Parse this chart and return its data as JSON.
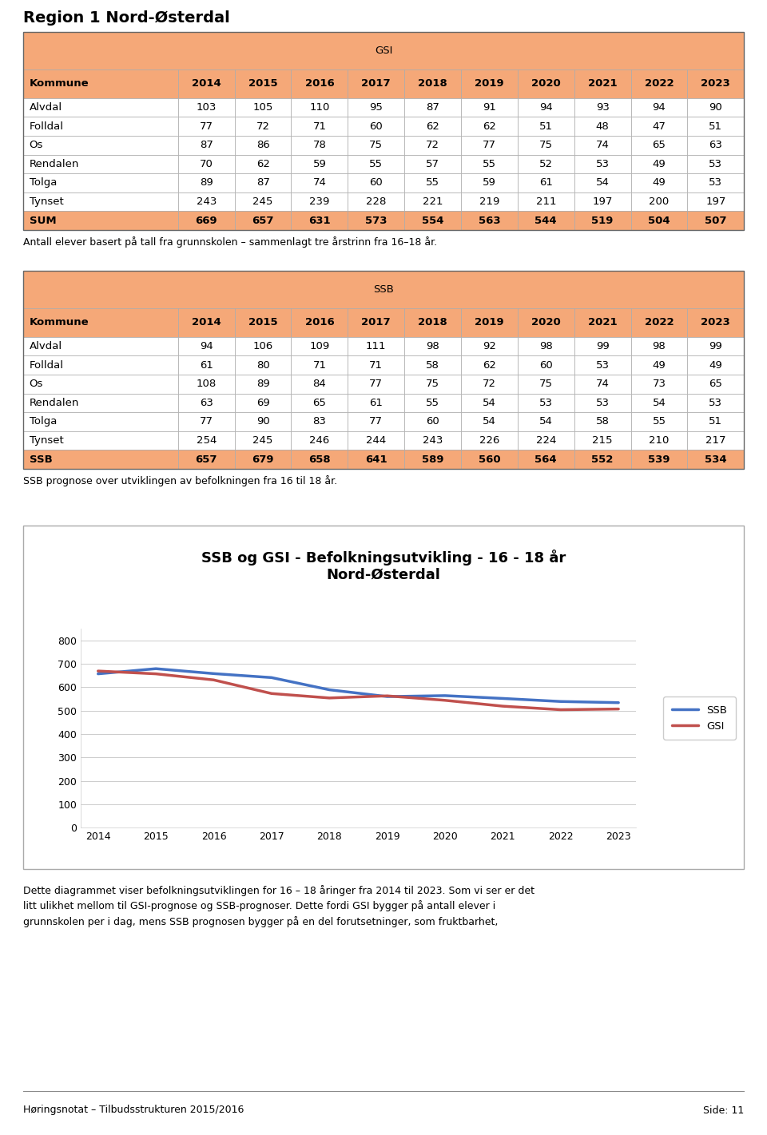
{
  "title": "Region 1 Nord-Østerdal",
  "gsi_header": "GSI",
  "ssb_header": "SSB",
  "years": [
    2014,
    2015,
    2016,
    2017,
    2018,
    2019,
    2020,
    2021,
    2022,
    2023
  ],
  "communes": [
    "Alvdal",
    "Folldal",
    "Os",
    "Rendalen",
    "Tolga",
    "Tynset"
  ],
  "gsi_data": {
    "Alvdal": [
      103,
      105,
      110,
      95,
      87,
      91,
      94,
      93,
      94,
      90
    ],
    "Folldal": [
      77,
      72,
      71,
      60,
      62,
      62,
      51,
      48,
      47,
      51
    ],
    "Os": [
      87,
      86,
      78,
      75,
      72,
      77,
      75,
      74,
      65,
      63
    ],
    "Rendalen": [
      70,
      62,
      59,
      55,
      57,
      55,
      52,
      53,
      49,
      53
    ],
    "Tolga": [
      89,
      87,
      74,
      60,
      55,
      59,
      61,
      54,
      49,
      53
    ],
    "Tynset": [
      243,
      245,
      239,
      228,
      221,
      219,
      211,
      197,
      200,
      197
    ]
  },
  "gsi_sum": [
    669,
    657,
    631,
    573,
    554,
    563,
    544,
    519,
    504,
    507
  ],
  "ssb_data": {
    "Alvdal": [
      94,
      106,
      109,
      111,
      98,
      92,
      98,
      99,
      98,
      99
    ],
    "Folldal": [
      61,
      80,
      71,
      71,
      58,
      62,
      60,
      53,
      49,
      49
    ],
    "Os": [
      108,
      89,
      84,
      77,
      75,
      72,
      75,
      74,
      73,
      65
    ],
    "Rendalen": [
      63,
      69,
      65,
      61,
      55,
      54,
      53,
      53,
      54,
      53
    ],
    "Tolga": [
      77,
      90,
      83,
      77,
      60,
      54,
      54,
      58,
      55,
      51
    ],
    "Tynset": [
      254,
      245,
      246,
      244,
      243,
      226,
      224,
      215,
      210,
      217
    ]
  },
  "ssb_sum": [
    657,
    679,
    658,
    641,
    589,
    560,
    564,
    552,
    539,
    534
  ],
  "gsi_note": "Antall elever basert på tall fra grunnskolen – sammenlagt tre årstrinn fra 16–18 år.",
  "ssb_note": "SSB prognose over utviklingen av befolkningen fra 16 til 18 år.",
  "paragraph_text": "Dette diagrammet viser befolkningsutviklingen for 16 – 18 åringer fra 2014 til 2023. Som vi ser er det\nlitt ulikhet mellom til GSI-prognose og SSB-prognoser. Dette fordi GSI bygger på antall elever i\ngrunnskolen per i dag, mens SSB prognosen bygger på en del forutsetninger, som fruktbarhet,",
  "chart_title_line1": "SSB og GSI - Befolkningsutvikling - 16 - 18 år",
  "chart_title_line2": "Nord-Østerdal",
  "footer_left": "Høringsnotat – Tilbudsstrukturen 2015/2016",
  "footer_right": "Side: 11",
  "header_bg": "#F5A878",
  "sum_bg": "#F5A878",
  "ssb_line_color": "#4472C4",
  "gsi_line_color": "#C0504D",
  "y_ticks": [
    0,
    100,
    200,
    300,
    400,
    500,
    600,
    700,
    800
  ],
  "x_years_chart": [
    2014,
    2015,
    2016,
    2017,
    2018,
    2019,
    2020,
    2021,
    2022,
    2023
  ]
}
